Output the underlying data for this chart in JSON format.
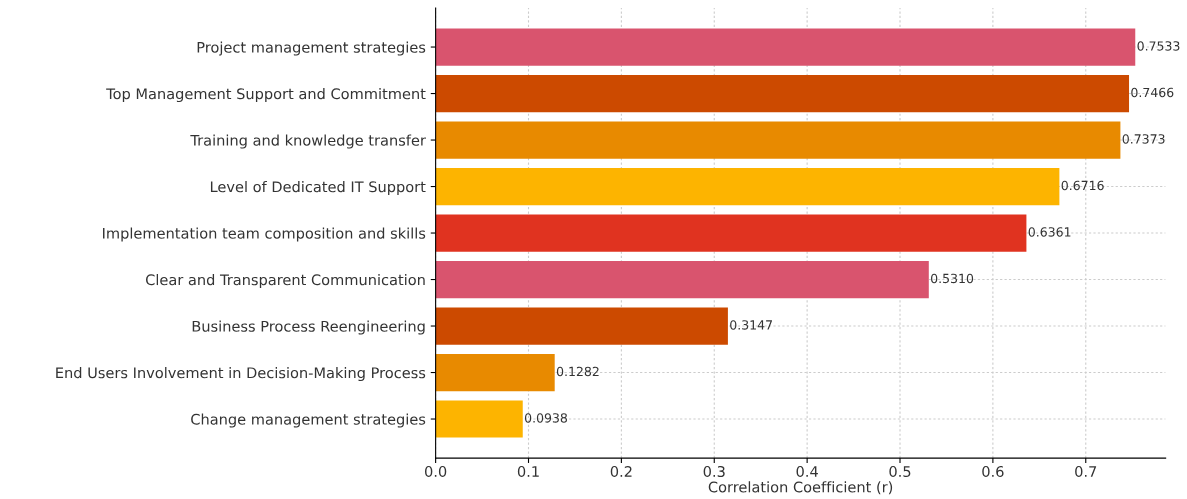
{
  "chart_data": {
    "type": "bar",
    "orientation": "horizontal",
    "xlabel": "Correlation Coefficient (r)",
    "categories": [
      "Project management strategies",
      "Top Management Support and Commitment",
      "Training and knowledge transfer",
      "Level of Dedicated IT Support",
      "Implementation team composition and skills",
      "Clear and Transparent Communication",
      "Business Process Reengineering",
      "End Users Involvement in Decision-Making Process",
      "Change management strategies"
    ],
    "values": [
      0.7533,
      0.7466,
      0.7373,
      0.6716,
      0.6361,
      0.531,
      0.3147,
      0.1282,
      0.0938
    ],
    "value_labels": [
      "0.7533",
      "0.7466",
      "0.7373",
      "0.6716",
      "0.6361",
      "0.5310",
      "0.3147",
      "0.1282",
      "0.0938"
    ],
    "colors": [
      "#d9546e",
      "#cc4a00",
      "#e88a00",
      "#fdb400",
      "#e03320",
      "#d9546e",
      "#cc4a00",
      "#e88a00",
      "#fdb400"
    ],
    "xlim": [
      0,
      0.786
    ],
    "xticks": [
      {
        "value": 0,
        "label": "0.0"
      },
      0.1,
      0.2,
      0.3,
      0.4,
      0.5,
      0.6,
      0.7
    ],
    "grid": true
  }
}
